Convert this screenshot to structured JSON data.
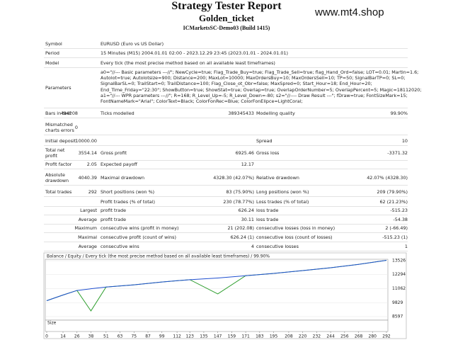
{
  "header": {
    "title": "Strategy Tester Report",
    "subtitle": "Golden_ticket",
    "server": "ICMarketsSC-Demo03 (Build 1415)",
    "watermark": "www.mt4.shop"
  },
  "info": [
    {
      "label": "Symbol",
      "value": "EURUSD (Euro vs US Dollar)"
    },
    {
      "label": "Period",
      "value": "15 Minutes (M15) 2004.01.01 02:00 - 2023.12.29 23:45 (2023.01.01 - 2024.01.01)"
    },
    {
      "label": "Model",
      "value": "Every tick (the most precise method based on all available least timeframes)"
    }
  ],
  "parameters": {
    "label": "Parameters",
    "lines": [
      "a0=\"//--- Basic parameters ---//\"; NewCycle=true; Flag_Trade_Buy=true; Flag_Trade_Sell=true; flag_Hand_Ord=false; LOT=0.01; Martin=1.6;",
      "Autolot=true; Autolotsize=900; Distance=200; MaxLot=10000; MaxOrdersBuy=10; MaxOrdersSell=10; TP=50; SignalBarTP=0; SL=0;",
      "SignalBarSL=0; TrailStart=0; TrailDistance=100; Flag_Close_ot_Obr=false; MaxSpred=0; Start_Hour=18; End_Hour=20;",
      "End_Time_Friday=\"22:30\"; ShowButton=true; ShowStat=true; Overlap=true; OverlapOrderNumber=5; OverlapPercent=5; Magic=18112020;",
      "a1=\"//--- WPR parameters ---//\"; R=168; R_Level_Up=-5; R_Level_Down=-80; s2=\"//---- Draw Result ---\"; fDraw=true; FontSizeMark=15;",
      "FontNameMark=\"Arial\"; ColorText=Black; ColorFonRec=Blue; ColorFonElipce=LightCoral;"
    ]
  },
  "stats": [
    [
      "Bars in test",
      "494208",
      "Ticks modelled",
      "389345433",
      "Modelling quality",
      "99.90%"
    ],
    [
      "Mismatched charts errors",
      "0"
    ],
    [
      "Initial deposit",
      "10000.00",
      "Spread",
      "10"
    ],
    [
      "Total net profit",
      "3554.14",
      "Gross profit",
      "6925.46",
      "Gross loss",
      "-3371.32"
    ],
    [
      "Profit factor",
      "2.05",
      "Expected payoff",
      "12.17"
    ],
    [
      "Absolute drawdown",
      "4040.39",
      "Maximal drawdown",
      "4328.30 (42.07%)",
      "Relative drawdown",
      "42.07% (4328.30)"
    ],
    [
      "Total trades",
      "292",
      "Short positions (won %)",
      "83 (75.90%)",
      "Long positions (won %)",
      "209 (79.90%)"
    ],
    [
      "Profit trades (% of total)",
      "230 (78.77%)",
      "Loss trades (% of total)",
      "62 (21.23%)"
    ],
    [
      "Largest",
      "profit trade",
      "626.24",
      "loss trade",
      "-515.23"
    ],
    [
      "Average",
      "profit trade",
      "30.11",
      "loss trade",
      "-54.38"
    ],
    [
      "Maximum",
      "consecutive wins (profit in money)",
      "21 (202.08)",
      "consecutive losses (loss in money)",
      "2 (-66.49)"
    ],
    [
      "Maximal",
      "consecutive profit (count of wins)",
      "626.24 (1)",
      "consecutive loss (count of losses)",
      "-515.23 (1)"
    ],
    [
      "Average",
      "consecutive wins",
      "4",
      "consecutive losses",
      "1"
    ]
  ],
  "graph": {
    "legend": "Balance / Equity / Every tick (the most precise method based on all available least timeframes) / 99.90%",
    "size_label": "Size",
    "xlim": [
      0,
      292
    ],
    "ylim": [
      8347,
      13963
    ],
    "yticks": [
      13526,
      12294,
      11062,
      9829,
      8597
    ],
    "xticks": [
      0,
      14,
      26,
      38,
      51,
      63,
      75,
      87,
      99,
      112,
      123,
      135,
      147,
      159,
      171,
      183,
      195,
      208,
      220,
      232,
      244,
      256,
      268,
      280,
      292
    ],
    "x": [
      0,
      14,
      26,
      38,
      51,
      75,
      99,
      123,
      147,
      171,
      195,
      220,
      244,
      268,
      292
    ],
    "series": [
      {
        "name": "Balance",
        "color": "#1f4fd0",
        "values": [
          10000,
          10500,
          10900,
          11050,
          11200,
          11400,
          11650,
          11850,
          12000,
          12200,
          12400,
          12650,
          12900,
          13200,
          13554
        ]
      },
      {
        "name": "Equity",
        "color": "#2e9e2e",
        "values": [
          10000,
          10500,
          10900,
          9100,
          11200,
          11400,
          11650,
          11850,
          10600,
          12200,
          12400,
          12650,
          12900,
          13200,
          13554
        ]
      }
    ]
  }
}
